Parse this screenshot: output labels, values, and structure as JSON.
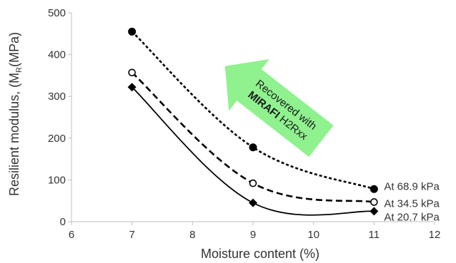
{
  "chart_data": {
    "type": "line",
    "xlabel": "Moisture content (%)",
    "ylabel_parts": {
      "before": "Resilient modulus, (M",
      "subscript": "R",
      "after": "(MPa)"
    },
    "xlim": [
      6,
      12
    ],
    "ylim": [
      0,
      500
    ],
    "x_ticks": [
      6,
      7,
      8,
      9,
      10,
      11,
      12
    ],
    "y_ticks": [
      0,
      100,
      200,
      300,
      400,
      500
    ],
    "grid": false,
    "series": [
      {
        "name": "At 68.9 kPa",
        "line_style": "dotted",
        "marker": "filled-circle",
        "points": [
          [
            7,
            455
          ],
          [
            9,
            178
          ],
          [
            11,
            78
          ]
        ]
      },
      {
        "name": "At 34.5 kPa",
        "line_style": "dashed",
        "marker": "open-circle",
        "points": [
          [
            7,
            357
          ],
          [
            9,
            92
          ],
          [
            11,
            47
          ]
        ]
      },
      {
        "name": "At 20.7 kPa",
        "line_style": "solid",
        "marker": "filled-diamond",
        "points": [
          [
            7,
            322
          ],
          [
            9,
            45
          ],
          [
            11,
            25
          ]
        ]
      }
    ],
    "annotation": {
      "line1": "Recovered with",
      "line2_bold": "MIRAFI",
      "line2_rest": " H2Rxx",
      "arrow_color": "#8ff28f",
      "direction": "up-left"
    }
  }
}
